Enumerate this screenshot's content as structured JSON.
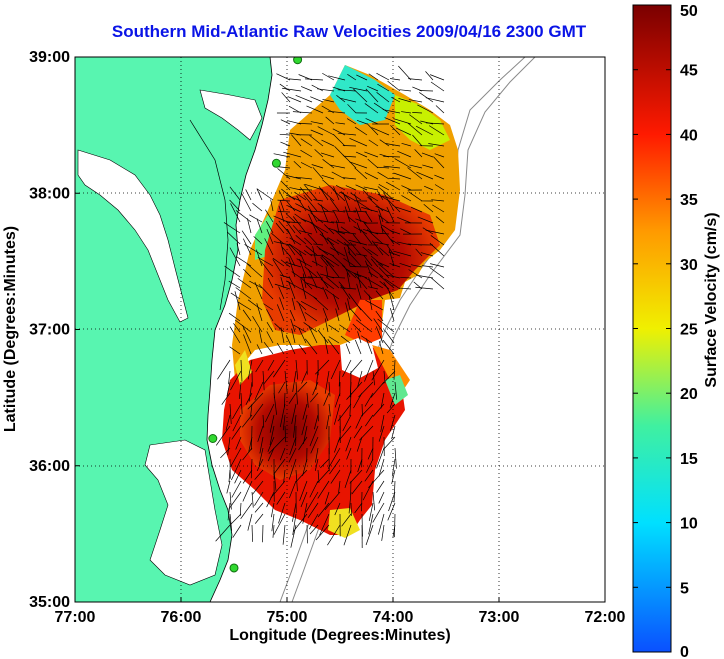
{
  "title": "Southern Mid-Atlantic Raw Velocities 2009/04/16 2300 GMT",
  "map": {
    "xlabel": "Longitude (Degrees:Minutes)",
    "ylabel": "Latitude (Degrees:Minutes)",
    "x_ticks": [
      "77:00",
      "76:00",
      "75:00",
      "74:00",
      "73:00",
      "72:00"
    ],
    "y_ticks": [
      "39:00",
      "38:00",
      "37:00",
      "36:00",
      "35:00"
    ],
    "lon_range": [
      -77,
      -72
    ],
    "lat_range": [
      35,
      39
    ],
    "land_color": "#58f5b0",
    "grid": true,
    "stations": [
      {
        "lon": -74.9,
        "lat": 38.98
      },
      {
        "lon": -75.1,
        "lat": 38.22
      },
      {
        "lon": -75.7,
        "lat": 36.2
      },
      {
        "lon": -75.5,
        "lat": 35.25
      }
    ]
  },
  "colorbar": {
    "label": "Surface Velocity (cm/s)",
    "ticks": [
      "0",
      "5",
      "10",
      "15",
      "20",
      "25",
      "30",
      "35",
      "40",
      "45",
      "50"
    ],
    "range": [
      0,
      50
    ],
    "colormap": "jet"
  }
}
